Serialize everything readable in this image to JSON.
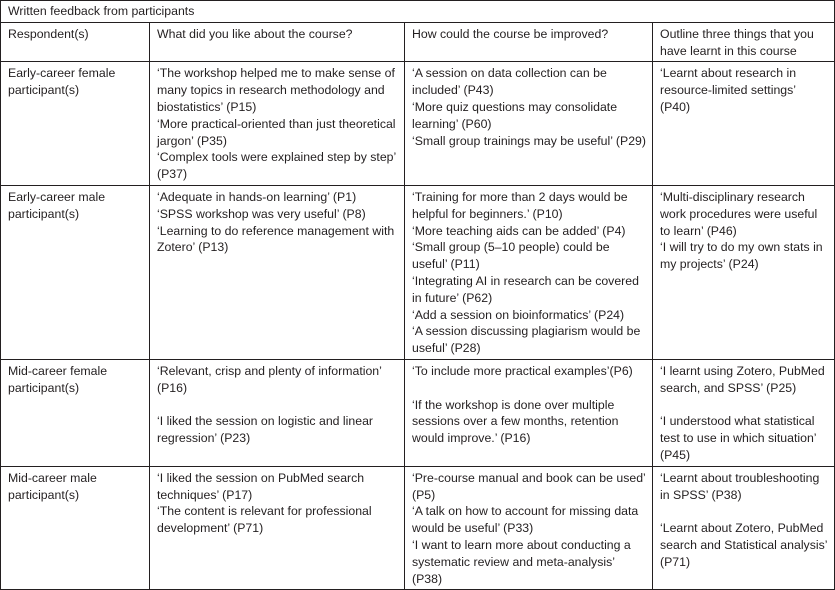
{
  "table": {
    "title": "Written feedback from participants",
    "headers": [
      "Respondent(s)",
      "What did you like about the course?",
      "How could the course be improved?",
      "Outline three things that you have learnt in this course"
    ],
    "rows": [
      {
        "respondent": "Early-career female participant(s)",
        "liked": [
          "‘The workshop helped me to make sense of many topics in research methodology and biostatistics’ (P15)",
          "‘More practical-oriented than just theoretical jargon’ (P35)",
          "‘Complex tools were explained step by step’ (P37)"
        ],
        "improved": [
          "‘A session on data collection can be included’ (P43)",
          "‘More quiz questions may consolidate learning’ (P60)",
          "‘Small group trainings may be useful’ (P29)"
        ],
        "learnt": [
          "‘Learnt about research in resource-limited settings’ (P40)"
        ]
      },
      {
        "respondent": "Early-career male participant(s)",
        "liked": [
          "‘Adequate in hands-on learning’ (P1)",
          "‘SPSS workshop was very useful’ (P8)",
          "‘Learning to do reference management with Zotero’ (P13)"
        ],
        "improved": [
          "‘Training for more than 2 days would be helpful for beginners.’ (P10)",
          "‘More teaching aids can be added’ (P4)",
          "‘Small group (5–10 people) could be useful’ (P11)",
          "‘Integrating AI in research can be covered in future’ (P62)",
          "‘Add a session on bioinformatics’ (P24)",
          "‘A session discussing  plagiarism would be useful’ (P28)"
        ],
        "learnt": [
          "‘Multi-disciplinary research work procedures were useful to learn’ (P46)",
          "‘I will try to do my own stats in my projects’ (P24)"
        ]
      },
      {
        "respondent": "Mid-career female participant(s)",
        "liked": [
          "‘Relevant, crisp and plenty of information’ (P16)",
          "‘I liked the session on logistic and linear regression’ (P23)"
        ],
        "improved": [
          "‘To include more practical  examples’(P6)",
          "‘If the workshop is done over multiple sessions over a few months, retention would improve.’ (P16)"
        ],
        "learnt": [
          "‘I learnt using Zotero, PubMed search, and SPSS’ (P25)",
          "‘I understood what statistical test to use in which situation’ (P45)"
        ]
      },
      {
        "respondent": "Mid-career male participant(s)",
        "liked": [
          "‘I liked the session on PubMed search techniques’ (P17)",
          "‘The content is relevant for professional development’ (P71)"
        ],
        "improved": [
          "‘Pre-course manual and book can be used’ (P5)",
          "‘A talk on how to account for missing data would be useful’ (P33)",
          "‘I want to learn more about conducting a systematic review and meta-analysis’ (P38)"
        ],
        "learnt": [
          "‘Learnt about troubleshooting in SPSS’ (P38)",
          "‘Learnt about Zotero, PubMed search and Statistical analysis’ (P71)"
        ]
      }
    ]
  }
}
